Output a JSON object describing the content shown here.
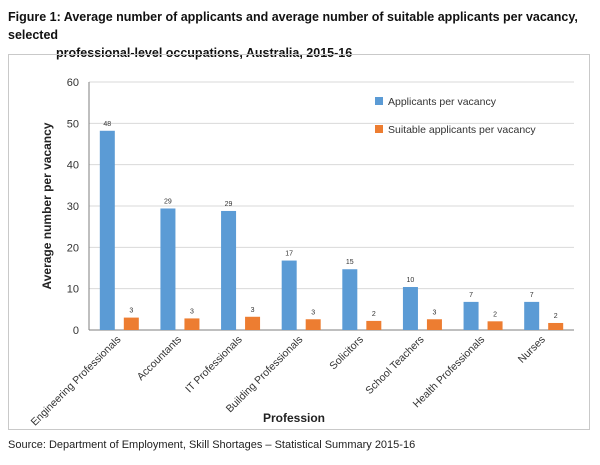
{
  "title": {
    "line1": "Figure 1: Average number of applicants and average number of suitable applicants per vacancy, selected",
    "line2": "professional-level occupations, Australia, 2015-16"
  },
  "source": "Source: Department of Employment, Skill Shortages – Statistical Summary 2015-16",
  "colors": {
    "applicants": "#5b9bd5",
    "suitable": "#ed7d31",
    "grid": "#d9d9d9",
    "axis": "#7f7f7f"
  },
  "chart_data": {
    "type": "bar",
    "xlabel": "Profession",
    "ylabel": "Average number per vacancy",
    "ylim": [
      0,
      60
    ],
    "yticks": [
      0,
      10,
      20,
      30,
      40,
      50,
      60
    ],
    "grid": true,
    "legend_position": "top-right",
    "categories": [
      "Engineering Professionals",
      "Accountants",
      "IT Professionals",
      "Building Professionals",
      "Solicitors",
      "School Teachers",
      "Health Professionals",
      "Nurses"
    ],
    "series": [
      {
        "name": "Applicants per vacancy",
        "values": [
          48,
          29,
          29,
          17,
          15,
          10,
          7,
          7
        ],
        "precise": [
          48.2,
          29.4,
          28.8,
          16.8,
          14.7,
          10.4,
          6.8,
          6.8
        ]
      },
      {
        "name": "Suitable applicants per vacancy",
        "values": [
          3,
          3,
          3,
          3,
          2,
          3,
          2,
          2
        ],
        "precise": [
          3.0,
          2.8,
          3.2,
          2.6,
          2.2,
          2.6,
          2.1,
          1.7
        ]
      }
    ]
  }
}
